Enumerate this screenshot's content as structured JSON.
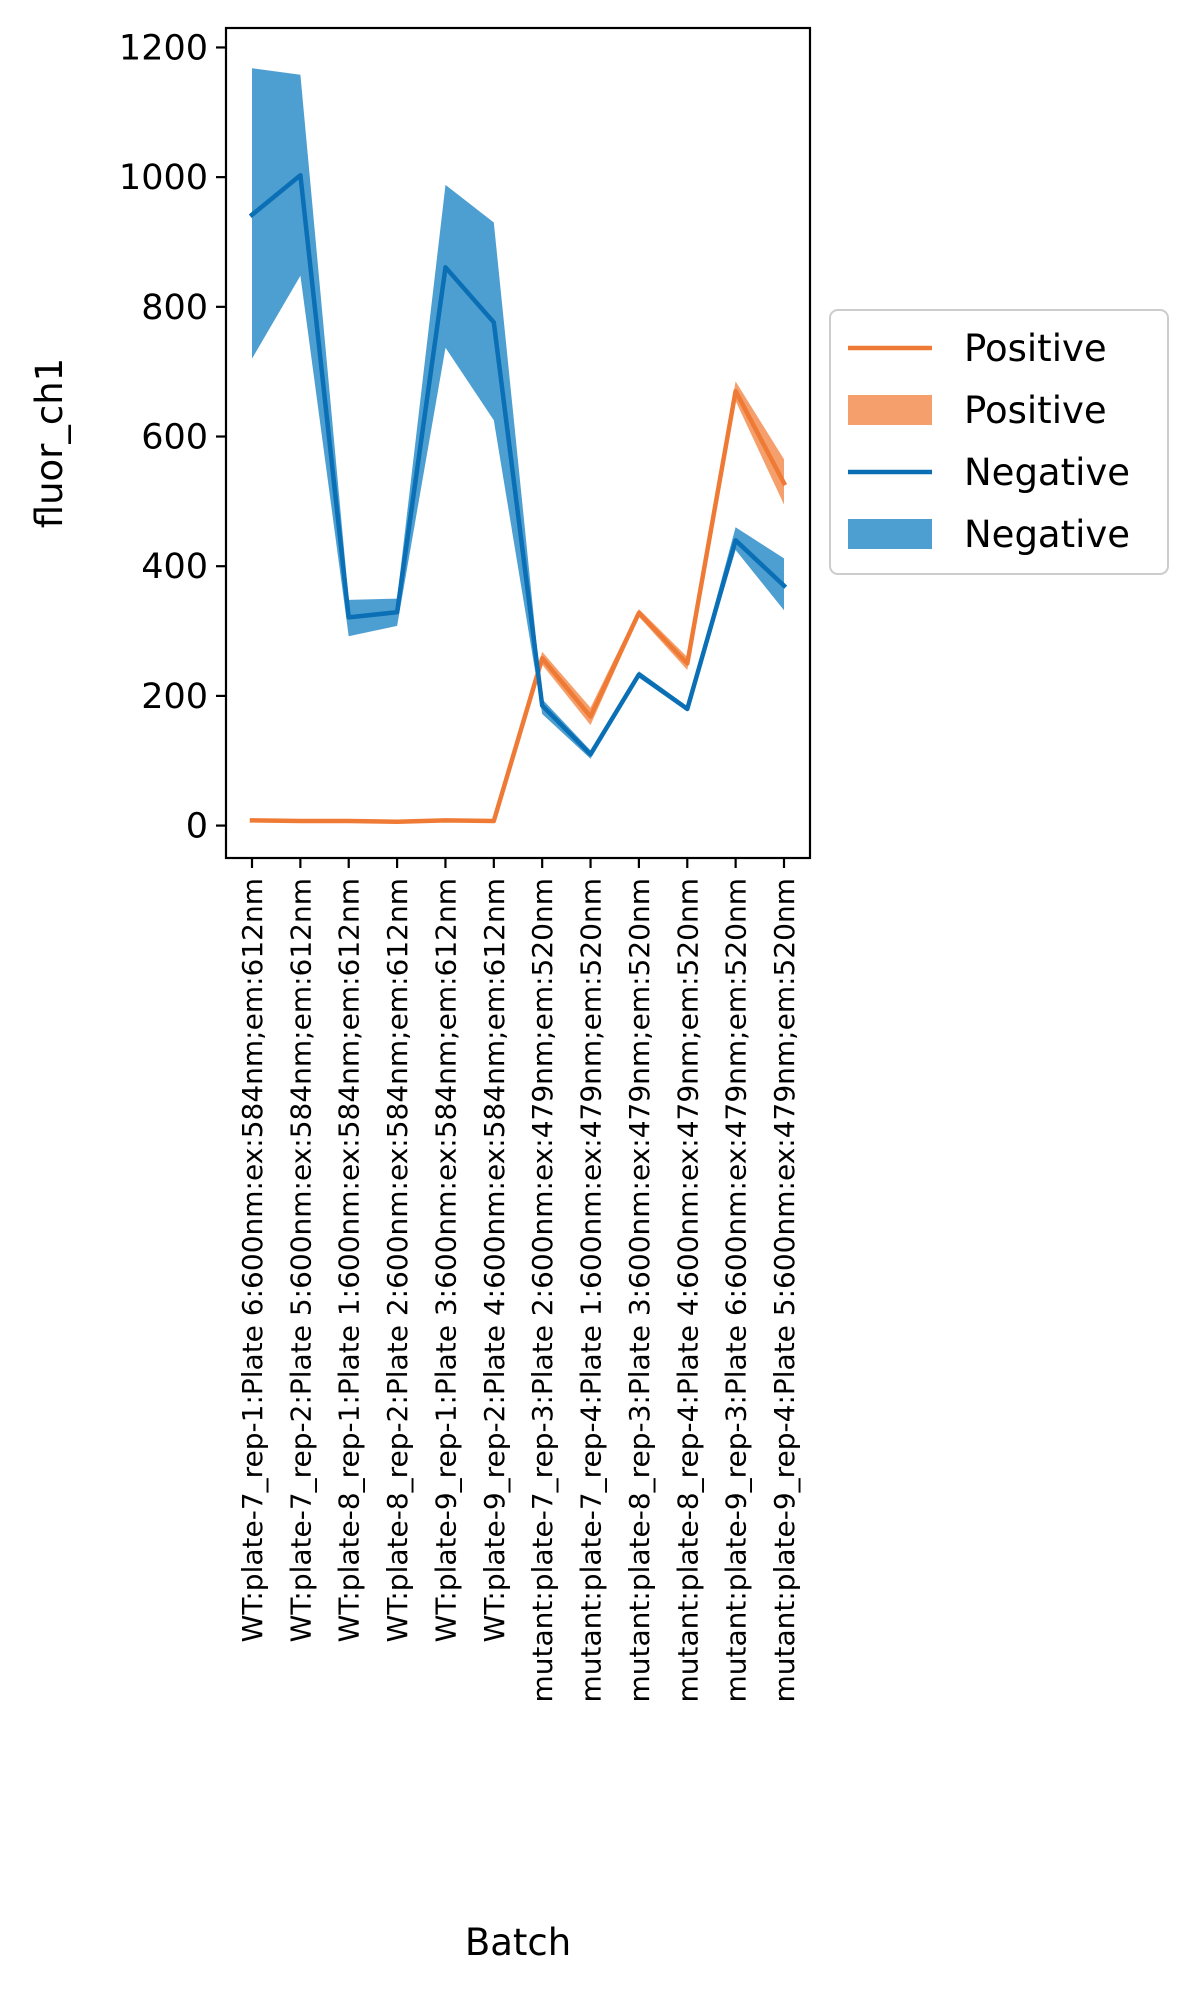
{
  "chart_data": {
    "type": "line",
    "xlabel": "Batch",
    "ylabel": "fluor_ch1",
    "ylim": [
      -50,
      1230
    ],
    "y_ticks": [
      0,
      200,
      400,
      600,
      800,
      1000,
      1200
    ],
    "grid": false,
    "legend_position": "right",
    "categories": [
      "WT:plate-7_rep-1:Plate 6:600nm:ex:584nm;em:612nm",
      "WT:plate-7_rep-2:Plate 5:600nm:ex:584nm;em:612nm",
      "WT:plate-8_rep-1:Plate 1:600nm:ex:584nm;em:612nm",
      "WT:plate-8_rep-2:Plate 2:600nm:ex:584nm;em:612nm",
      "WT:plate-9_rep-1:Plate 3:600nm:ex:584nm;em:612nm",
      "WT:plate-9_rep-2:Plate 4:600nm:ex:584nm;em:612nm",
      "mutant:plate-7_rep-3:Plate 2:600nm:ex:479nm;em:520nm",
      "mutant:plate-7_rep-4:Plate 1:600nm:ex:479nm;em:520nm",
      "mutant:plate-8_rep-3:Plate 3:600nm:ex:479nm;em:520nm",
      "mutant:plate-8_rep-4:Plate 4:600nm:ex:479nm;em:520nm",
      "mutant:plate-9_rep-3:Plate 6:600nm:ex:479nm;em:520nm",
      "mutant:plate-9_rep-4:Plate 5:600nm:ex:479nm;em:520nm"
    ],
    "series": [
      {
        "name": "Positive",
        "line_color": "#ef7a35",
        "band_color": "#f5a06c",
        "values": [
          8,
          7,
          7,
          6,
          8,
          7,
          258,
          168,
          328,
          250,
          670,
          528
        ],
        "lower": [
          6,
          5,
          5,
          4,
          6,
          5,
          248,
          155,
          322,
          240,
          655,
          495
        ],
        "upper": [
          10,
          9,
          9,
          8,
          10,
          9,
          268,
          182,
          334,
          260,
          685,
          565
        ]
      },
      {
        "name": "Negative",
        "line_color": "#0a6fb4",
        "band_color": "#4e9fd1",
        "values": [
          942,
          1003,
          321,
          329,
          861,
          776,
          185,
          110,
          233,
          180,
          440,
          370
        ],
        "lower": [
          720,
          848,
          292,
          308,
          737,
          625,
          172,
          103,
          228,
          176,
          425,
          332
        ],
        "upper": [
          1168,
          1158,
          348,
          350,
          988,
          930,
          195,
          116,
          238,
          184,
          460,
          412
        ]
      }
    ],
    "legend": [
      {
        "label": "Positive",
        "kind": "line",
        "color": "#ef7a35"
      },
      {
        "label": "Positive",
        "kind": "band",
        "color": "#f5a06c"
      },
      {
        "label": "Negative",
        "kind": "line",
        "color": "#0a6fb4"
      },
      {
        "label": "Negative",
        "kind": "band",
        "color": "#4e9fd1"
      }
    ]
  }
}
